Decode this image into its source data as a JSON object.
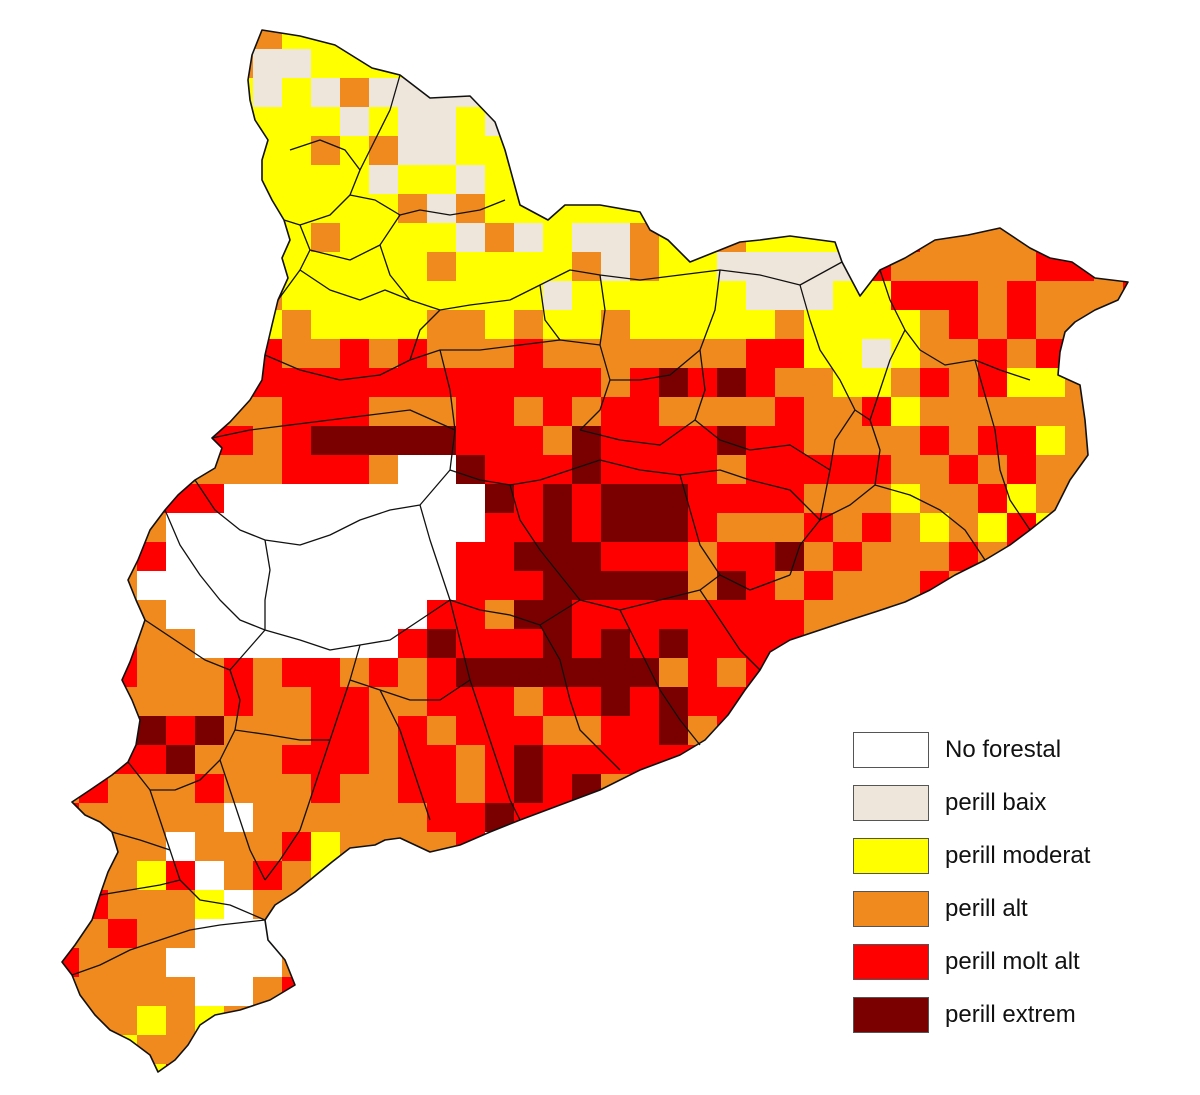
{
  "map": {
    "region": "Catalunya",
    "colors": {
      "no_forestal": "#ffffff",
      "perill_baix": "#efe6db",
      "perill_moderat": "#ffff00",
      "perill_alt": "#f08a1e",
      "perill_molt_alt": "#ff0000",
      "perill_extrem": "#7a0000",
      "border": "#111111"
    }
  },
  "legend": {
    "items": [
      {
        "label": "No forestal",
        "color": "#ffffff"
      },
      {
        "label": "perill baix",
        "color": "#efe6db"
      },
      {
        "label": "perill moderat",
        "color": "#ffff00"
      },
      {
        "label": "perill alt",
        "color": "#f08a1e"
      },
      {
        "label": "perill molt alt",
        "color": "#ff0000"
      },
      {
        "label": "perill extrem",
        "color": "#7a0000"
      }
    ]
  }
}
